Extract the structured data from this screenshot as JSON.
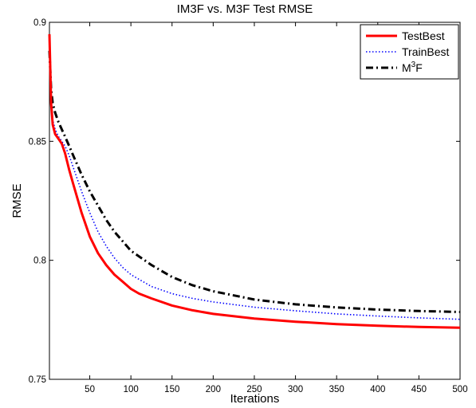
{
  "chart_data": {
    "type": "line",
    "title": "IM3F vs. M3F Test RMSE",
    "xlabel": "Iterations",
    "ylabel": "RMSE",
    "xlim": [
      1,
      500
    ],
    "ylim": [
      0.75,
      0.9
    ],
    "x_ticks": [
      50,
      100,
      150,
      200,
      250,
      300,
      350,
      400,
      450,
      500
    ],
    "y_ticks": [
      0.75,
      0.8,
      0.85,
      0.9
    ],
    "y_tick_labels": [
      "0.75",
      "0.8",
      "0.85",
      "0.9"
    ],
    "grid": false,
    "legend_position": "top-right",
    "series": [
      {
        "name": "TestBest",
        "legend_label": "TestBest",
        "color": "#ff0000",
        "style": "solid",
        "x": [
          1,
          3,
          5,
          8,
          12,
          16,
          20,
          25,
          30,
          40,
          50,
          60,
          70,
          80,
          90,
          100,
          110,
          125,
          150,
          175,
          200,
          250,
          300,
          350,
          400,
          450,
          500
        ],
        "y": [
          0.895,
          0.866,
          0.857,
          0.853,
          0.851,
          0.849,
          0.845,
          0.838,
          0.832,
          0.82,
          0.81,
          0.803,
          0.798,
          0.794,
          0.791,
          0.788,
          0.786,
          0.784,
          0.781,
          0.779,
          0.7775,
          0.7755,
          0.7742,
          0.7732,
          0.7725,
          0.772,
          0.7717
        ]
      },
      {
        "name": "TrainBest",
        "legend_label": "TrainBest",
        "color": "#0000ff",
        "style": "dotted",
        "x": [
          1,
          3,
          5,
          8,
          12,
          16,
          20,
          25,
          30,
          40,
          50,
          60,
          70,
          80,
          90,
          100,
          125,
          150,
          175,
          200,
          250,
          300,
          350,
          400,
          450,
          500
        ],
        "y": [
          0.893,
          0.868,
          0.859,
          0.855,
          0.852,
          0.85,
          0.848,
          0.844,
          0.839,
          0.829,
          0.82,
          0.812,
          0.806,
          0.801,
          0.797,
          0.794,
          0.789,
          0.786,
          0.784,
          0.7825,
          0.7803,
          0.7788,
          0.7775,
          0.7766,
          0.7758,
          0.7752
        ]
      },
      {
        "name": "M3F",
        "legend_label": "M",
        "legend_sup": "3",
        "legend_suffix": "F",
        "color": "#000000",
        "style": "dashdot",
        "x": [
          1,
          3,
          5,
          8,
          12,
          16,
          20,
          25,
          30,
          40,
          50,
          60,
          70,
          80,
          90,
          100,
          125,
          150,
          175,
          200,
          250,
          300,
          350,
          400,
          450,
          500
        ],
        "y": [
          0.888,
          0.872,
          0.866,
          0.862,
          0.858,
          0.855,
          0.852,
          0.848,
          0.844,
          0.836,
          0.829,
          0.823,
          0.817,
          0.812,
          0.808,
          0.804,
          0.798,
          0.793,
          0.7895,
          0.787,
          0.7835,
          0.7815,
          0.7802,
          0.7793,
          0.7787,
          0.7783
        ]
      }
    ]
  }
}
